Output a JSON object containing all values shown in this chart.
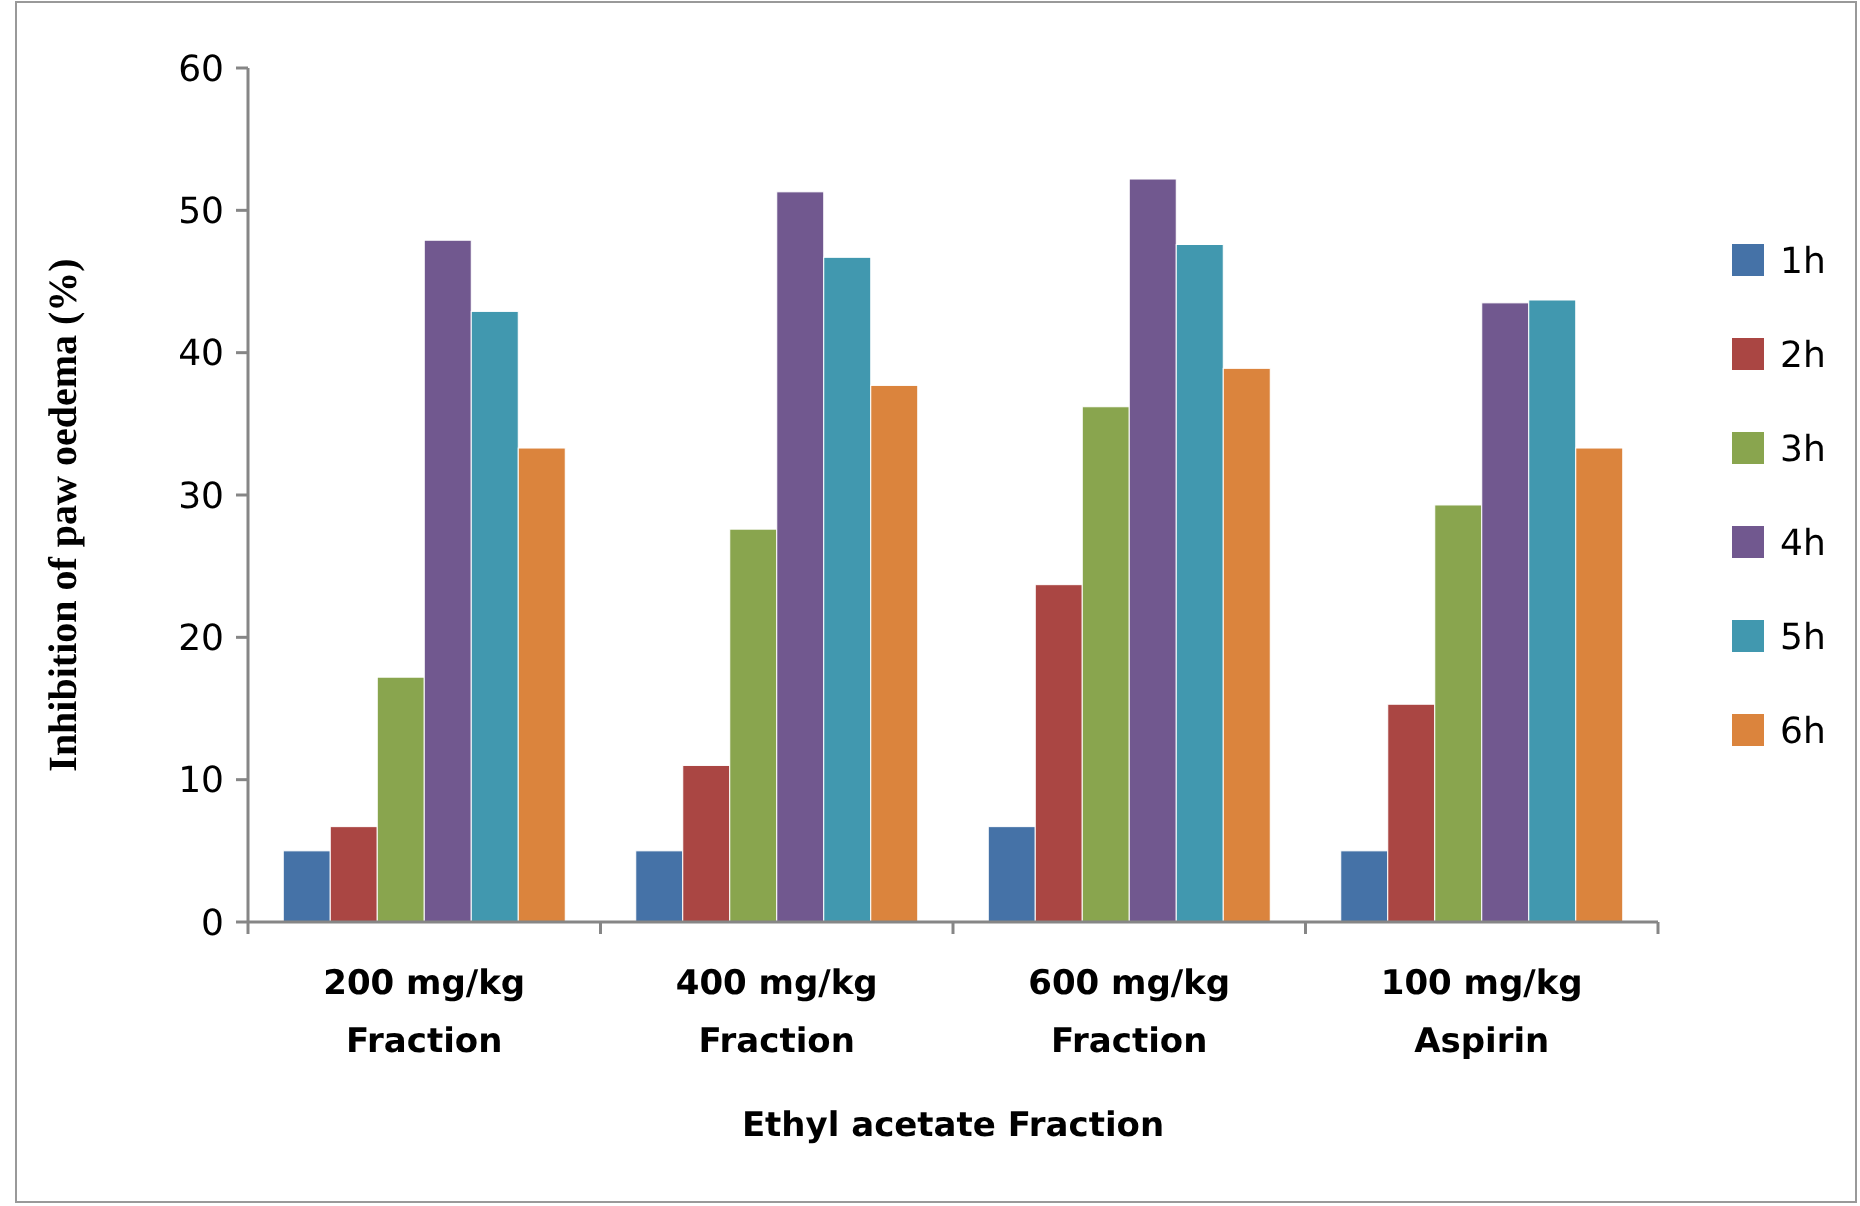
{
  "chart_data": {
    "type": "bar",
    "xlabel": "Ethyl acetate Fraction",
    "ylabel": "Inhibition of paw oedema (%)",
    "categories": [
      "200 mg/kg Fraction",
      "400 mg/kg Fraction",
      "600 mg/kg Fraction",
      "100 mg/kg Aspirin"
    ],
    "series": [
      {
        "name": "1h",
        "color": "#4572a7",
        "values": [
          5,
          5,
          6.7,
          5
        ]
      },
      {
        "name": "2h",
        "color": "#aa4643",
        "values": [
          6.7,
          11,
          23.7,
          15.3
        ]
      },
      {
        "name": "3h",
        "color": "#89a54e",
        "values": [
          17.2,
          27.6,
          36.2,
          29.3
        ]
      },
      {
        "name": "4h",
        "color": "#71588f",
        "values": [
          47.9,
          51.3,
          52.2,
          43.5
        ]
      },
      {
        "name": "5h",
        "color": "#4198af",
        "values": [
          42.9,
          46.7,
          47.6,
          43.7
        ]
      },
      {
        "name": "6h",
        "color": "#db843d",
        "values": [
          33.3,
          37.7,
          38.9,
          33.3
        ]
      }
    ],
    "ylim": [
      0,
      60
    ],
    "yticks": [
      0,
      10,
      20,
      30,
      40,
      50,
      60
    ],
    "grid": false,
    "legend": "right"
  }
}
